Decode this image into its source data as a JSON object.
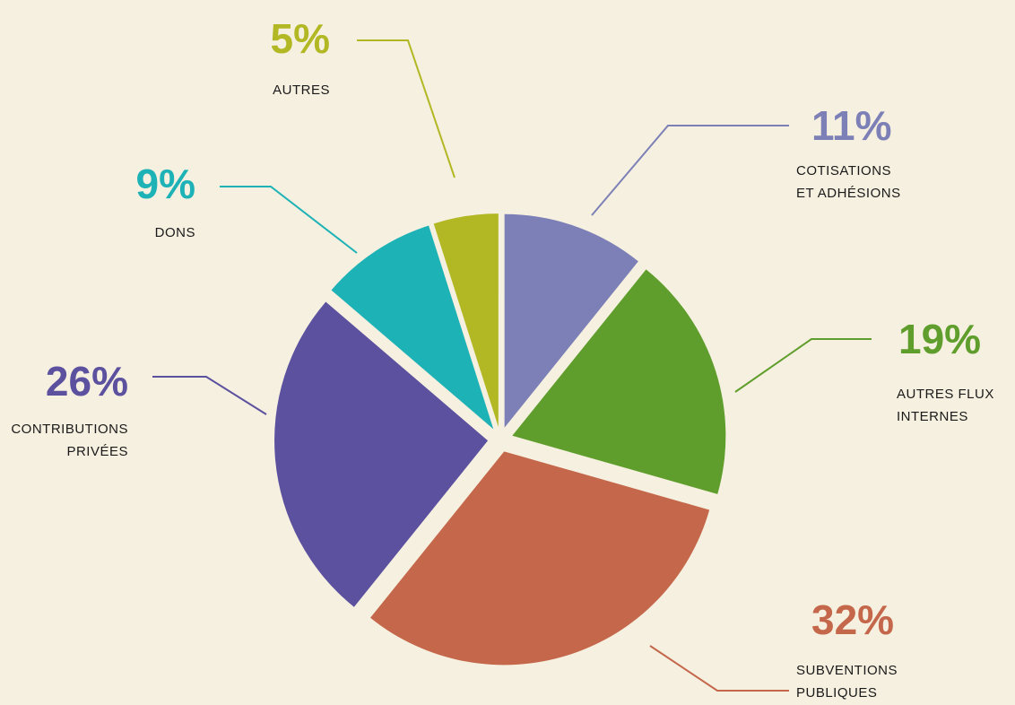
{
  "chart_data": {
    "type": "pie",
    "categories": [
      "COTISATIONS\nET ADHÉSIONS",
      "AUTRES FLUX\nINTERNES",
      "SUBVENTIONS\nPUBLIQUES",
      "CONTRIBUTIONS\nPRIVÉES",
      "DONS",
      "AUTRES"
    ],
    "values": [
      11,
      19,
      32,
      26,
      9,
      5
    ],
    "value_labels": [
      "11%",
      "19%",
      "32%",
      "26%",
      "9%",
      "5%"
    ],
    "colors": [
      "#7c80b6",
      "#5f9e2c",
      "#c4674b",
      "#5c519f",
      "#1db2b6",
      "#b2b824"
    ]
  }
}
